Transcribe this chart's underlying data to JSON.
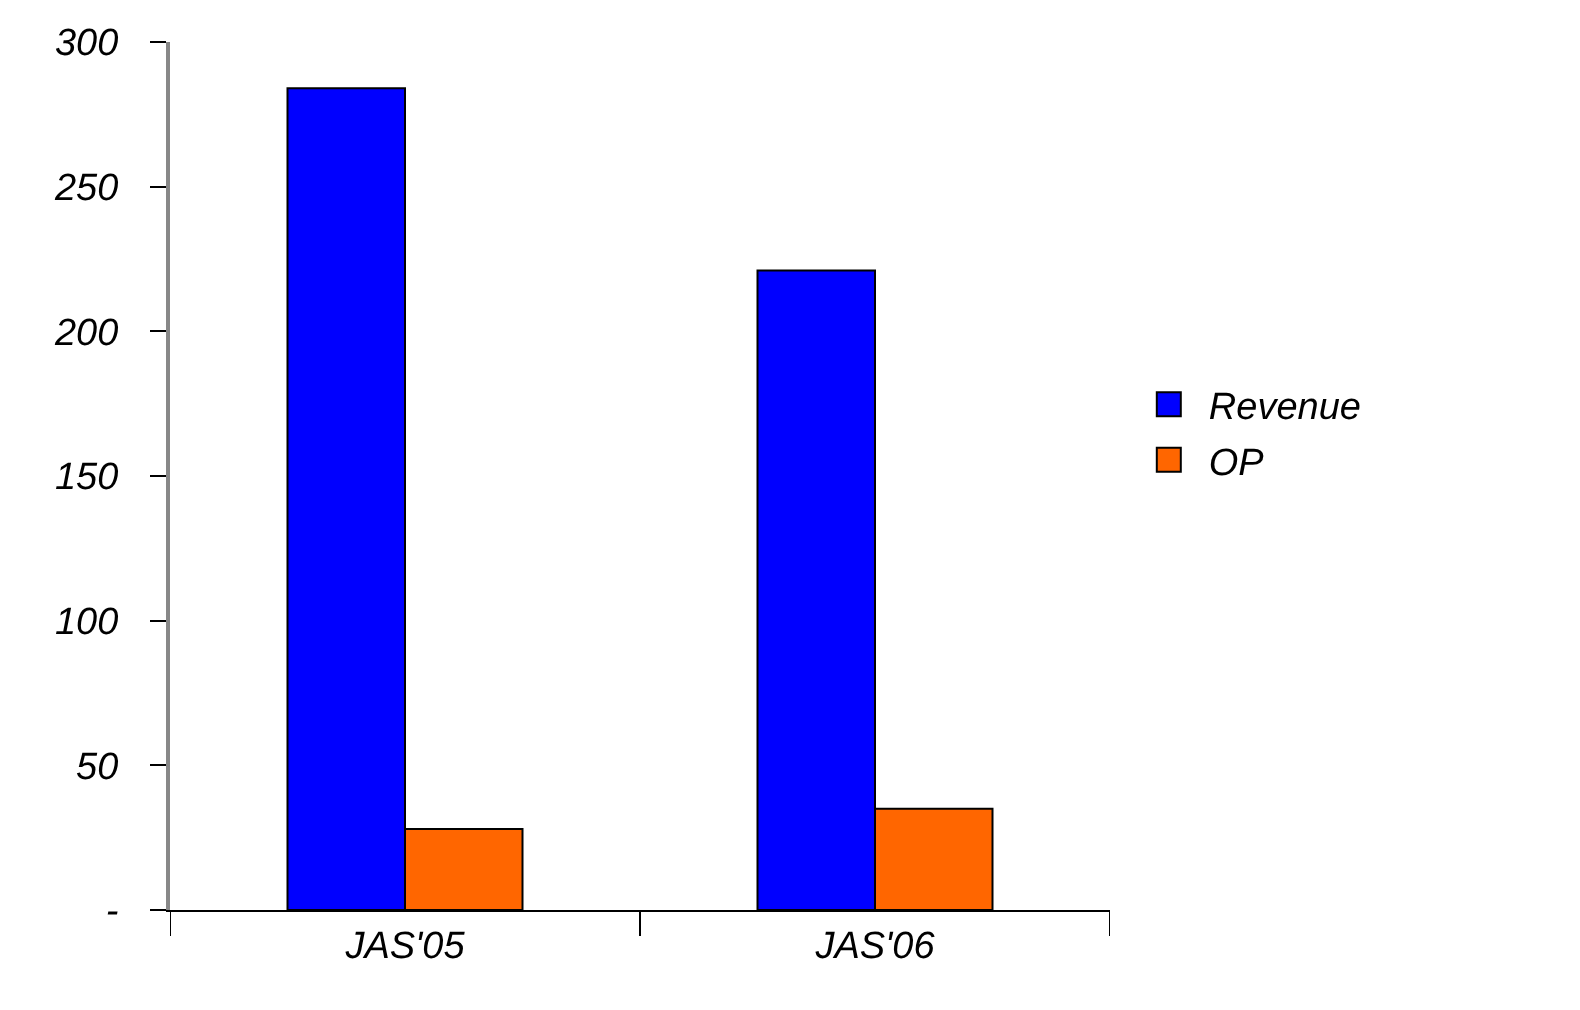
{
  "chart_data": {
    "type": "bar",
    "categories": [
      "JAS'05",
      "JAS'06"
    ],
    "series": [
      {
        "name": "Revenue",
        "color": "#0000ff",
        "values": [
          284,
          221
        ]
      },
      {
        "name": "OP",
        "color": "#ff6600",
        "values": [
          28,
          35
        ]
      }
    ],
    "ylim": [
      0,
      300
    ],
    "yticks": [
      {
        "value": 0,
        "label": "-"
      },
      50,
      100,
      150,
      200,
      250,
      300
    ],
    "grid": false,
    "legend": "right"
  }
}
